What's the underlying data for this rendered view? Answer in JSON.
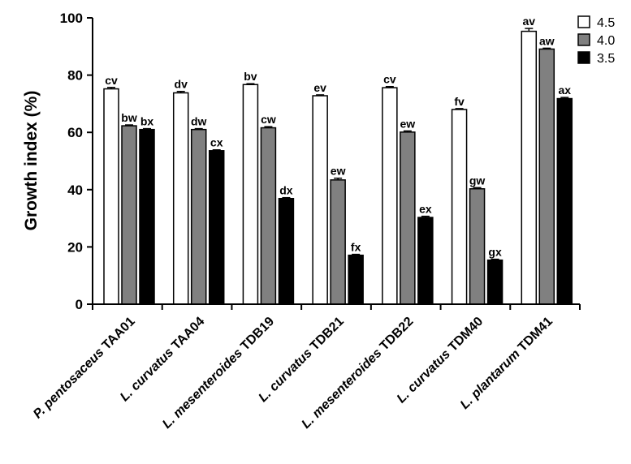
{
  "chart_data": {
    "type": "bar",
    "title": "",
    "ylabel": "Growth index (%)",
    "xlabel": "",
    "ylim": [
      0,
      100
    ],
    "yticks": [
      "0",
      "20",
      "40",
      "60",
      "80",
      "100"
    ],
    "legend_position": "top-right",
    "categories": [
      {
        "genus": "P.",
        "species": "pentosaceus",
        "strain": "TAA01"
      },
      {
        "genus": "L.",
        "species": "curvatus",
        "strain": "TAA04"
      },
      {
        "genus": "L.",
        "species": "mesenteroides",
        "strain": "TDB19"
      },
      {
        "genus": "L.",
        "species": "curvatus",
        "strain": "TDB21"
      },
      {
        "genus": "L.",
        "species": "mesenteroides",
        "strain": "TDB22"
      },
      {
        "genus": "L.",
        "species": "curvatus",
        "strain": "TDM40"
      },
      {
        "genus": "L.",
        "species": "plantarum",
        "strain": "TDM41"
      }
    ],
    "series": [
      {
        "name": "4.5",
        "color": "#ffffff",
        "values": [
          75.2,
          73.8,
          76.7,
          72.8,
          75.6,
          68.0,
          95.3
        ],
        "errors": [
          0.5,
          0.5,
          0.3,
          0.3,
          0.4,
          0.3,
          1.0
        ],
        "labels": [
          "cv",
          "dv",
          "bv",
          "ev",
          "cv",
          "fv",
          "av"
        ]
      },
      {
        "name": "4.0",
        "color": "#808080",
        "values": [
          62.3,
          61.0,
          61.6,
          43.4,
          60.1,
          40.3,
          89.1
        ],
        "errors": [
          0.3,
          0.3,
          0.4,
          0.6,
          0.4,
          0.4,
          0.3
        ],
        "labels": [
          "bw",
          "dw",
          "cw",
          "ew",
          "ew",
          "gw",
          "aw"
        ]
      },
      {
        "name": "3.5",
        "color": "#000000",
        "values": [
          61.0,
          53.6,
          36.9,
          17.1,
          30.3,
          15.4,
          71.8
        ],
        "errors": [
          0.3,
          0.3,
          0.3,
          0.3,
          0.4,
          0.3,
          0.4
        ],
        "labels": [
          "bx",
          "cx",
          "dx",
          "fx",
          "ex",
          "gx",
          "ax"
        ]
      }
    ]
  }
}
